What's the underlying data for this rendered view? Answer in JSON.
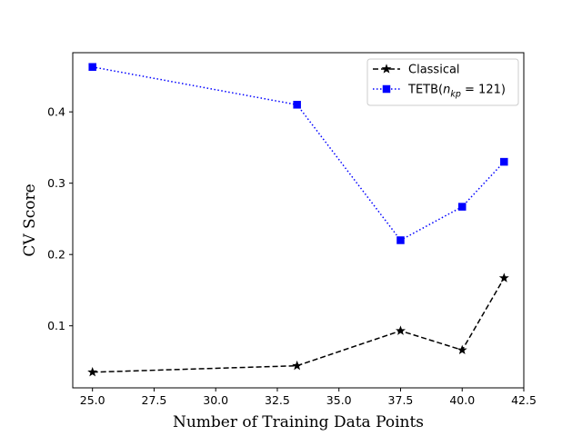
{
  "chart_data": {
    "type": "line",
    "title": "",
    "xlabel": "Number of Training Data Points",
    "ylabel": "CV Score",
    "xlim": [
      24.2,
      42.5
    ],
    "ylim": [
      0.013,
      0.483
    ],
    "x_ticks": [
      25.0,
      27.5,
      30.0,
      32.5,
      35.0,
      37.5,
      40.0,
      42.5
    ],
    "x_tick_labels": [
      "25.0",
      "27.5",
      "30.0",
      "32.5",
      "35.0",
      "37.5",
      "40.0",
      "42.5"
    ],
    "y_ticks": [
      0.1,
      0.2,
      0.3,
      0.4
    ],
    "y_tick_labels": [
      "0.1",
      "0.2",
      "0.3",
      "0.4"
    ],
    "grid": false,
    "legend_position": "top-right",
    "series": [
      {
        "name": "Classical",
        "color": "#000000",
        "linestyle": "dashed",
        "marker": "star",
        "x": [
          25.0,
          33.3,
          37.5,
          40.0,
          41.7
        ],
        "y": [
          0.035,
          0.044,
          0.093,
          0.066,
          0.167
        ]
      },
      {
        "name": "TETB(n_kp = 121)",
        "legend_parts": {
          "prefix": "TETB(",
          "var_main": "n",
          "var_sub": "kp",
          "suffix": " = 121)"
        },
        "color": "#0000ff",
        "linestyle": "dotted",
        "marker": "square",
        "x": [
          25.0,
          33.3,
          37.5,
          40.0,
          41.7
        ],
        "y": [
          0.463,
          0.41,
          0.22,
          0.267,
          0.33
        ]
      }
    ]
  }
}
